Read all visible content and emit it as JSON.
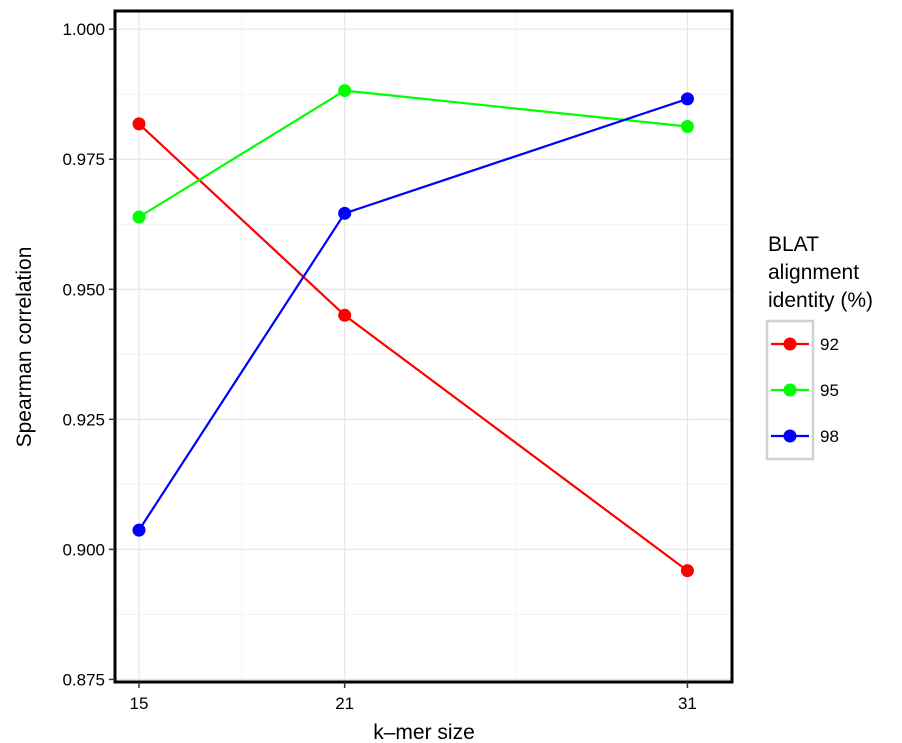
{
  "chart_data": {
    "type": "line",
    "title": "",
    "xlabel": "k–mer size",
    "ylabel": "Spearman correlation",
    "x": [
      15,
      21,
      31
    ],
    "x_tick_labels": [
      "15",
      "21",
      "31"
    ],
    "xlim": [
      14.3,
      32.3
    ],
    "ylim": [
      0.8745,
      1.0035
    ],
    "y_ticks": [
      0.875,
      0.9,
      0.925,
      0.95,
      0.975,
      1.0
    ],
    "y_tick_labels": [
      "0.875",
      "0.900",
      "0.925",
      "0.950",
      "0.975",
      "1.000"
    ],
    "grid": true,
    "legend": {
      "title_lines": [
        "BLAT",
        "alignment",
        "identity (%)"
      ],
      "placement": "right"
    },
    "series": [
      {
        "name": "92",
        "color": "#ff0000",
        "values": [
          0.9818,
          0.945,
          0.8959
        ]
      },
      {
        "name": "95",
        "color": "#00ff00",
        "values": [
          0.9639,
          0.9882,
          0.9813
        ]
      },
      {
        "name": "98",
        "color": "#0000ff",
        "values": [
          0.9037,
          0.9646,
          0.9866
        ]
      }
    ]
  }
}
